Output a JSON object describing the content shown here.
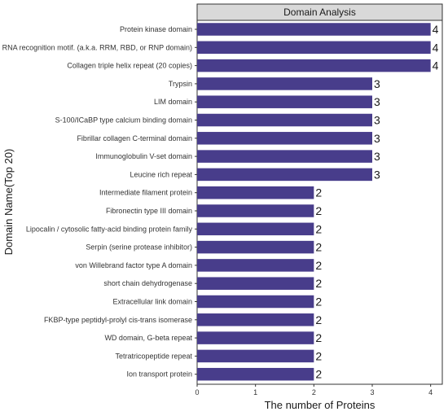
{
  "chart_data": {
    "type": "bar",
    "orientation": "horizontal",
    "title": "Domain Analysis",
    "xlabel": "The number of Proteins",
    "ylabel": "Domain Name(Top 20)",
    "xlim": [
      0,
      4.2
    ],
    "xticks": [
      0,
      1,
      2,
      3,
      4
    ],
    "grid": false,
    "bar_color": "#483d8b",
    "categories": [
      "Protein kinase domain",
      "RNA recognition motif. (a.k.a. RRM, RBD, or RNP domain)",
      "Collagen triple helix repeat (20 copies)",
      "Trypsin",
      "LIM domain",
      "S-100/ICaBP type calcium binding domain",
      "Fibrillar collagen C-terminal domain",
      "Immunoglobulin V-set domain",
      "Leucine rich repeat",
      "Intermediate filament protein",
      "Fibronectin type III domain",
      "Lipocalin / cytosolic fatty-acid binding protein family",
      "Serpin (serine protease inhibitor)",
      "von Willebrand factor type A domain",
      "short chain dehydrogenase",
      "Extracellular link domain",
      "FKBP-type peptidyl-prolyl cis-trans isomerase",
      "WD domain, G-beta repeat",
      "Tetratricopeptide repeat",
      "Ion transport protein"
    ],
    "values": [
      4,
      4,
      4,
      3,
      3,
      3,
      3,
      3,
      3,
      2,
      2,
      2,
      2,
      2,
      2,
      2,
      2,
      2,
      2,
      2
    ]
  }
}
